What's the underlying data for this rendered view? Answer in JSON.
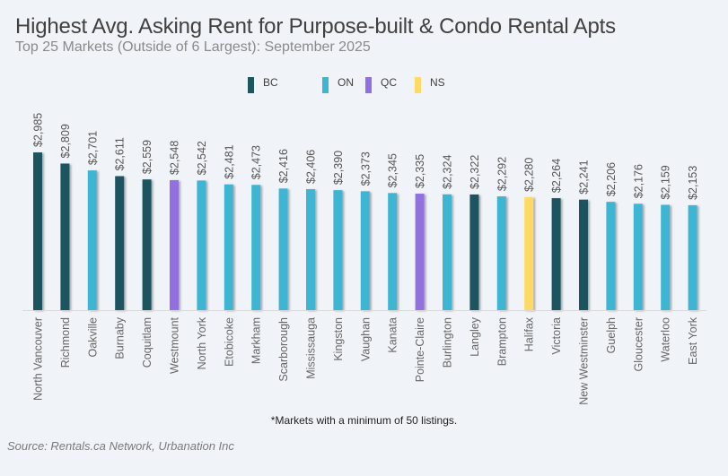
{
  "header": {
    "title": "Highest Avg. Asking Rent for Purpose-built & Condo Rental Apts",
    "subtitle": "Top 25 Markets (Outside of 6 Largest): September 2025"
  },
  "legend": [
    {
      "label": "BC",
      "color": "#1d5561"
    },
    {
      "label": "ON",
      "color": "#3db5d3"
    },
    {
      "label": "QC",
      "color": "#9370e0"
    },
    {
      "label": "NS",
      "color": "#ffd966"
    }
  ],
  "note": "*Markets with a minimum of 50 listings.",
  "source": "Source: Rentals.ca Network, Urbanation Inc",
  "chart_data": {
    "type": "bar",
    "title": "Highest Avg. Asking Rent for Purpose-built & Condo Rental Apts",
    "subtitle": "Top 25 Markets (Outside of 6 Largest): September 2025",
    "xlabel": "",
    "ylabel": "",
    "ylim": [
      500,
      3100
    ],
    "grid": false,
    "legend_position": "top-center",
    "categories": [
      "North Vancouver",
      "Richmond",
      "Oakville",
      "Burnaby",
      "Coquitlam",
      "Westmount",
      "North York",
      "Etobicoke",
      "Markham",
      "Scarborough",
      "Mississauga",
      "Kingston",
      "Vaughan",
      "Kanata",
      "Pointe-Claire",
      "Burlington",
      "Langley",
      "Brampton",
      "Halifax",
      "Victoria",
      "New Westminster",
      "Guelph",
      "Gloucester",
      "Waterloo",
      "East York"
    ],
    "values": [
      2985,
      2809,
      2701,
      2611,
      2559,
      2548,
      2542,
      2481,
      2473,
      2416,
      2406,
      2390,
      2373,
      2345,
      2335,
      2324,
      2322,
      2292,
      2280,
      2264,
      2241,
      2206,
      2176,
      2159,
      2153
    ],
    "labels": [
      "$2,985",
      "$2,809",
      "$2,701",
      "$2,611",
      "$2,559",
      "$2,548",
      "$2,542",
      "$2,481",
      "$2,473",
      "$2,416",
      "$2,406",
      "$2,390",
      "$2,373",
      "$2,345",
      "$2,335",
      "$2,324",
      "$2,322",
      "$2,292",
      "$2,280",
      "$2,264",
      "$2,241",
      "$2,206",
      "$2,176",
      "$2,159",
      "$2,153"
    ],
    "province": [
      "BC",
      "BC",
      "ON",
      "BC",
      "BC",
      "QC",
      "ON",
      "ON",
      "ON",
      "ON",
      "ON",
      "ON",
      "ON",
      "ON",
      "QC",
      "ON",
      "BC",
      "ON",
      "NS",
      "BC",
      "BC",
      "ON",
      "ON",
      "ON",
      "ON"
    ]
  }
}
